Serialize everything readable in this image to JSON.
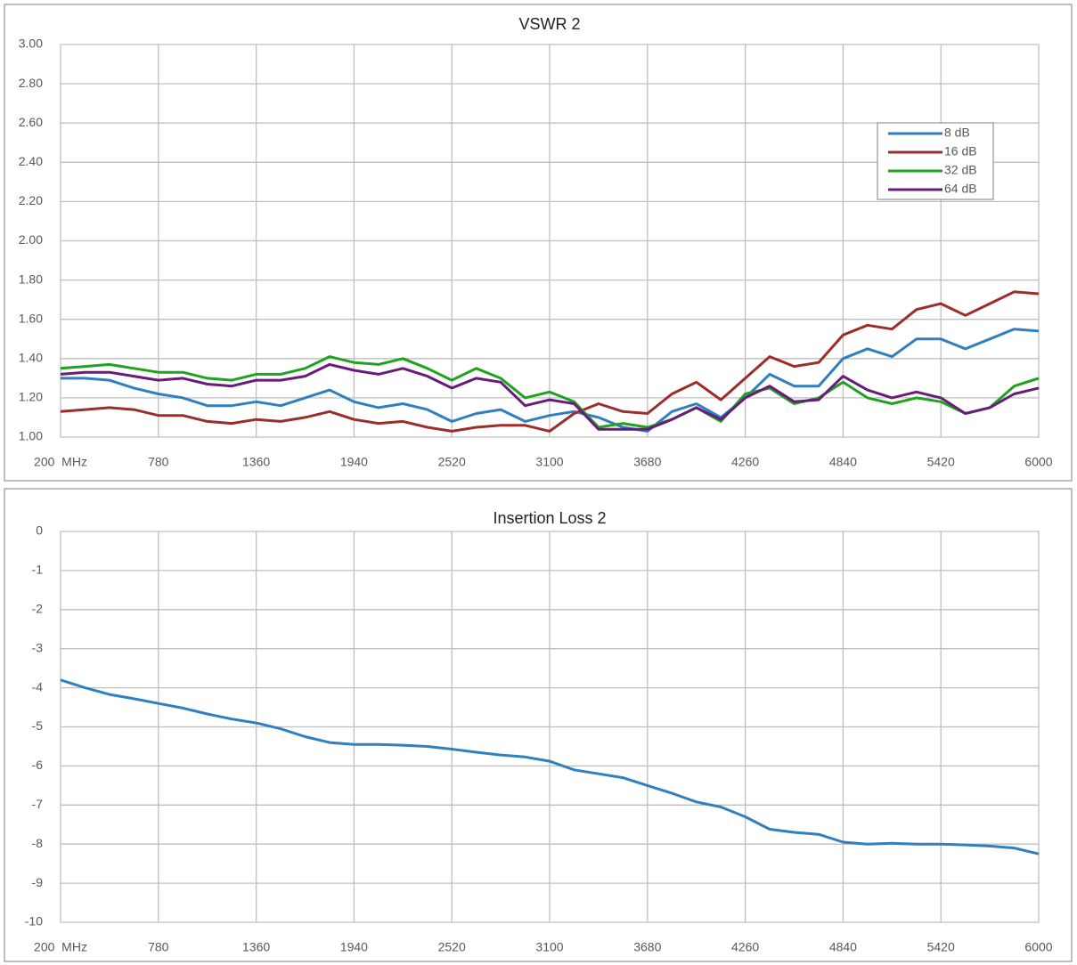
{
  "chart_data": [
    {
      "type": "line",
      "title": "VSWR 2",
      "x": [
        200,
        345,
        490,
        635,
        780,
        925,
        1070,
        1215,
        1360,
        1505,
        1650,
        1795,
        1940,
        2085,
        2230,
        2375,
        2520,
        2665,
        2810,
        2955,
        3100,
        3245,
        3390,
        3535,
        3680,
        3825,
        3970,
        4115,
        4260,
        4405,
        4550,
        4695,
        4840,
        4985,
        5130,
        5275,
        5420,
        5565,
        5710,
        5855,
        6000
      ],
      "series": [
        {
          "name": "8 dB",
          "color": "#2f7fc1",
          "values": [
            1.3,
            1.3,
            1.29,
            1.25,
            1.22,
            1.2,
            1.16,
            1.16,
            1.18,
            1.16,
            1.2,
            1.24,
            1.18,
            1.15,
            1.17,
            1.14,
            1.08,
            1.12,
            1.14,
            1.08,
            1.11,
            1.13,
            1.1,
            1.05,
            1.03,
            1.13,
            1.17,
            1.1,
            1.2,
            1.32,
            1.26,
            1.26,
            1.4,
            1.45,
            1.41,
            1.5,
            1.5,
            1.45,
            1.5,
            1.55,
            1.54
          ]
        },
        {
          "name": "16 dB",
          "color": "#9b2d2a",
          "values": [
            1.13,
            1.14,
            1.15,
            1.14,
            1.11,
            1.11,
            1.08,
            1.07,
            1.09,
            1.08,
            1.1,
            1.13,
            1.09,
            1.07,
            1.08,
            1.05,
            1.03,
            1.05,
            1.06,
            1.06,
            1.03,
            1.12,
            1.17,
            1.13,
            1.12,
            1.22,
            1.28,
            1.19,
            1.3,
            1.41,
            1.36,
            1.38,
            1.52,
            1.57,
            1.55,
            1.65,
            1.68,
            1.62,
            1.68,
            1.74,
            1.73
          ]
        },
        {
          "name": "32 dB",
          "color": "#1fa31f",
          "values": [
            1.35,
            1.36,
            1.37,
            1.35,
            1.33,
            1.33,
            1.3,
            1.29,
            1.32,
            1.32,
            1.35,
            1.41,
            1.38,
            1.37,
            1.4,
            1.35,
            1.29,
            1.35,
            1.3,
            1.2,
            1.23,
            1.18,
            1.05,
            1.07,
            1.05,
            1.09,
            1.15,
            1.08,
            1.22,
            1.25,
            1.17,
            1.2,
            1.28,
            1.2,
            1.17,
            1.2,
            1.18,
            1.12,
            1.15,
            1.26,
            1.3
          ]
        },
        {
          "name": "64 dB",
          "color": "#6a1b7a",
          "values": [
            1.32,
            1.33,
            1.33,
            1.31,
            1.29,
            1.3,
            1.27,
            1.26,
            1.29,
            1.29,
            1.31,
            1.37,
            1.34,
            1.32,
            1.35,
            1.31,
            1.25,
            1.3,
            1.28,
            1.16,
            1.19,
            1.17,
            1.04,
            1.04,
            1.04,
            1.09,
            1.15,
            1.09,
            1.2,
            1.26,
            1.18,
            1.19,
            1.31,
            1.24,
            1.2,
            1.23,
            1.2,
            1.12,
            1.15,
            1.22,
            1.25
          ]
        }
      ],
      "xlim": [
        200,
        6000
      ],
      "xticks": [
        {
          "value": 200,
          "label": "200  MHz"
        },
        780,
        1360,
        1940,
        2520,
        3100,
        3680,
        4260,
        4840,
        5420,
        6000
      ],
      "ylim": [
        1,
        3
      ],
      "yticks": [
        {
          "value": 1,
          "label": "1.00"
        },
        {
          "value": 1.2,
          "label": "1.20"
        },
        {
          "value": 1.4,
          "label": "1.40"
        },
        {
          "value": 1.6,
          "label": "1.60"
        },
        {
          "value": 1.8,
          "label": "1.80"
        },
        {
          "value": 2,
          "label": "2.00"
        },
        {
          "value": 2.2,
          "label": "2.20"
        },
        {
          "value": 2.4,
          "label": "2.40"
        },
        {
          "value": 2.6,
          "label": "2.60"
        },
        {
          "value": 2.8,
          "label": "2.80"
        },
        {
          "value": 3,
          "label": "3.00"
        }
      ],
      "grid": true,
      "legend": "upper right"
    },
    {
      "type": "line",
      "title": "Insertion Loss 2",
      "x": [
        200,
        345,
        490,
        635,
        780,
        925,
        1070,
        1215,
        1360,
        1505,
        1650,
        1795,
        1940,
        2085,
        2230,
        2375,
        2520,
        2665,
        2810,
        2955,
        3100,
        3245,
        3390,
        3535,
        3680,
        3825,
        3970,
        4115,
        4260,
        4405,
        4550,
        4695,
        4840,
        4985,
        5130,
        5275,
        5420,
        5565,
        5710,
        5855,
        6000
      ],
      "series": [
        {
          "color": "#2f7fc1",
          "values": [
            -3.8,
            -4.0,
            -4.17,
            -4.28,
            -4.4,
            -4.52,
            -4.67,
            -4.8,
            -4.9,
            -5.05,
            -5.25,
            -5.4,
            -5.45,
            -5.45,
            -5.47,
            -5.5,
            -5.57,
            -5.65,
            -5.72,
            -5.77,
            -5.88,
            -6.1,
            -6.2,
            -6.3,
            -6.5,
            -6.7,
            -6.92,
            -7.05,
            -7.3,
            -7.62,
            -7.7,
            -7.75,
            -7.95,
            -8.0,
            -7.98,
            -8.0,
            -8.0,
            -8.02,
            -8.05,
            -8.1,
            -8.25
          ]
        }
      ],
      "xlim": [
        200,
        6000
      ],
      "xticks": [
        {
          "value": 200,
          "label": "200  MHz"
        },
        780,
        1360,
        1940,
        2520,
        3100,
        3680,
        4260,
        4840,
        5420,
        6000
      ],
      "ylim": [
        -10,
        0
      ],
      "yticks": [
        -10,
        -9,
        -8,
        -7,
        -6,
        -5,
        -4,
        -3,
        -2,
        -1,
        0
      ],
      "grid": true
    }
  ]
}
